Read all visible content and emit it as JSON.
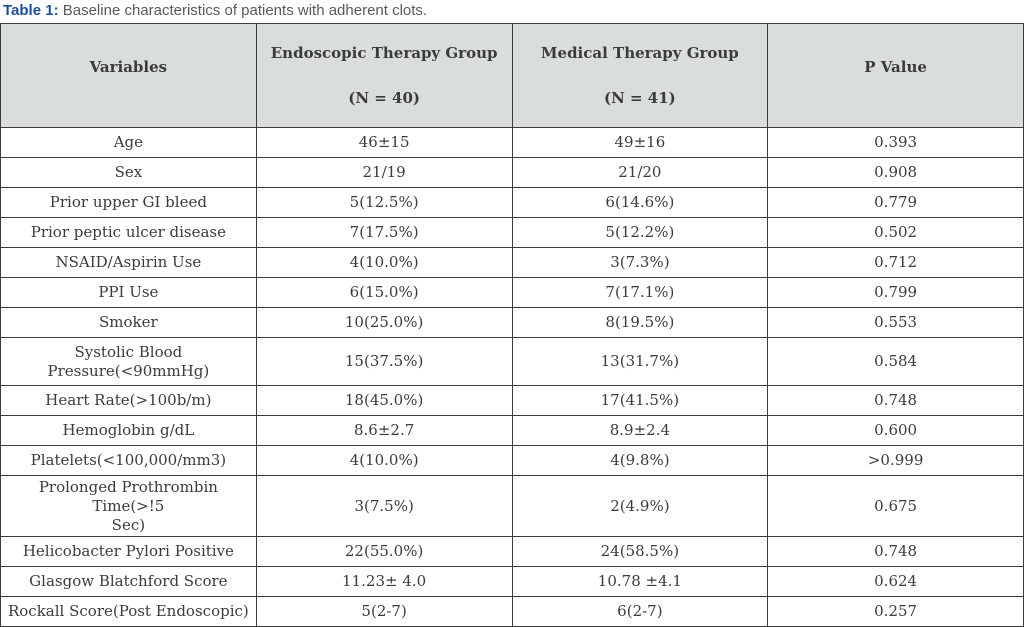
{
  "caption": {
    "label": "Table 1:",
    "text": " Baseline characteristics of patients with adherent clots."
  },
  "colors": {
    "caption_accent": "#1c4e9d",
    "caption_text": "#58595b",
    "header_bg": "#d9dddc",
    "border": "#3c3c3c",
    "body_text": "#3b3b3b"
  },
  "table": {
    "columns": [
      {
        "header": "Variables",
        "subheader": ""
      },
      {
        "header": "Endoscopic Therapy Group",
        "subheader": "(N = 40)"
      },
      {
        "header": "Medical Therapy Group",
        "subheader": "(N = 41)"
      },
      {
        "header": "P Value",
        "subheader": ""
      }
    ],
    "cell_names": [
      "variable-label",
      "endoscopic-value",
      "medical-value",
      "p-value"
    ],
    "rows": [
      [
        "Age",
        "46±15",
        "49±16",
        "0.393"
      ],
      [
        "Sex",
        "21/19",
        "21/20",
        "0.908"
      ],
      [
        "Prior upper GI bleed",
        "5(12.5%)",
        "6(14.6%)",
        "0.779"
      ],
      [
        "Prior peptic ulcer disease",
        "7(17.5%)",
        "5(12.2%)",
        "0.502"
      ],
      [
        "NSAID/Aspirin Use",
        "4(10.0%)",
        "3(7.3%)",
        "0.712"
      ],
      [
        "PPI Use",
        "6(15.0%)",
        "7(17.1%)",
        "0.799"
      ],
      [
        "Smoker",
        "10(25.0%)",
        "8(19.5%)",
        "0.553"
      ],
      [
        "Systolic Blood\nPressure(<90mmHg)",
        "15(37.5%)",
        "13(31.7%)",
        "0.584"
      ],
      [
        "Heart Rate(>100b/m)",
        "18(45.0%)",
        "17(41.5%)",
        "0.748"
      ],
      [
        "Hemoglobin g/dL",
        "8.6±2.7",
        "8.9±2.4",
        "0.600"
      ],
      [
        "Platelets(<100,000/mm3)",
        "4(10.0%)",
        "4(9.8%)",
        ">0.999"
      ],
      [
        "Prolonged Prothrombin Time(>!5\nSec)",
        "3(7.5%)",
        "2(4.9%)",
        "0.675"
      ],
      [
        "Helicobacter Pylori Positive",
        "22(55.0%)",
        "24(58.5%)",
        "0.748"
      ],
      [
        "Glasgow Blatchford Score",
        "11.23± 4.0",
        "10.78 ±4.1",
        "0.624"
      ],
      [
        "Rockall Score(Post Endoscopic)",
        "5(2-7)",
        "6(2-7)",
        "0.257"
      ]
    ]
  }
}
